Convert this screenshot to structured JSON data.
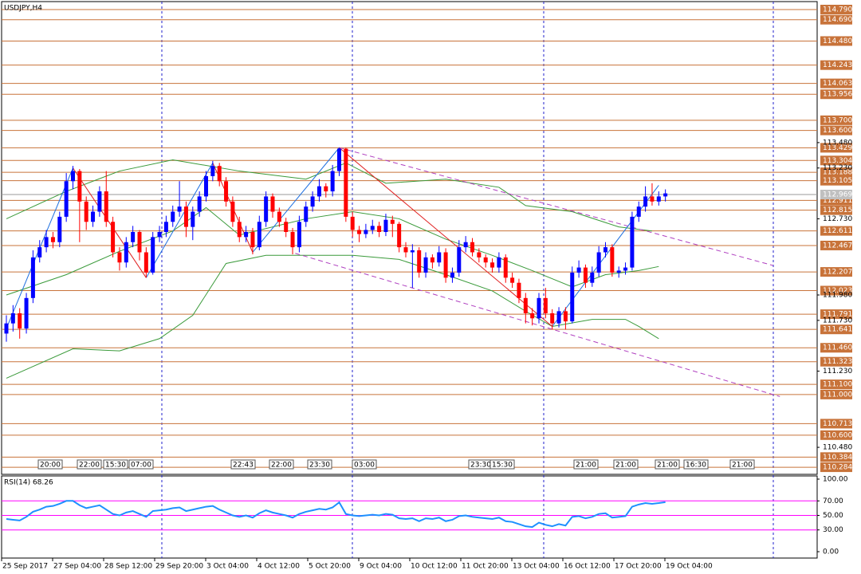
{
  "chart_data": {
    "type": "candlestick",
    "title": "USDJPY,H4",
    "ylim": [
      110.214,
      114.884
    ],
    "levels": [
      {
        "value": 114.79,
        "label": "114.790"
      },
      {
        "value": 114.69,
        "label": "114.690"
      },
      {
        "value": 114.48,
        "label": "114.480"
      },
      114.243,
      114.063,
      113.956,
      {
        "value": 113.7,
        "label": "113.700"
      },
      {
        "value": 113.6,
        "label": "113.600"
      },
      113.429,
      113.304,
      113.188,
      113.105,
      112.911,
      112.815,
      112.611,
      112.467,
      112.207,
      112.023,
      111.791,
      111.641,
      {
        "value": 111.46,
        "label": "111.460"
      },
      111.323,
      {
        "value": 111.1,
        "label": "111.100"
      },
      {
        "value": 111.0,
        "label": "111.000"
      },
      110.713,
      {
        "value": 110.6,
        "label": "110.600"
      },
      110.384,
      110.284
    ],
    "yticks": [
      {
        "value": 113.48,
        "label": "113.480"
      },
      {
        "value": 113.23,
        "label": "113.230"
      },
      {
        "value": 112.73,
        "label": "112.730"
      },
      {
        "value": 111.98,
        "label": "111.980"
      },
      {
        "value": 111.73,
        "label": "111.730"
      },
      {
        "value": 111.23,
        "label": "111.230"
      },
      {
        "value": 110.48,
        "label": "110.480"
      }
    ],
    "current_price": 112.969,
    "level_color": "#c8733a",
    "bull_color": "#0000ff",
    "bear_color": "#ff0000",
    "candles": [
      [
        111.6,
        111.78,
        111.52,
        111.7
      ],
      [
        111.7,
        111.88,
        111.62,
        111.8
      ],
      [
        111.8,
        111.85,
        111.55,
        111.65
      ],
      [
        111.65,
        112.0,
        111.6,
        111.95
      ],
      [
        111.95,
        112.42,
        111.9,
        112.35
      ],
      [
        112.35,
        112.52,
        112.3,
        112.45
      ],
      [
        112.45,
        112.62,
        112.4,
        112.55
      ],
      [
        112.55,
        112.6,
        112.44,
        112.5
      ],
      [
        112.5,
        112.8,
        112.45,
        112.75
      ],
      [
        112.75,
        113.18,
        112.7,
        113.1
      ],
      [
        113.1,
        113.25,
        113.02,
        113.2
      ],
      [
        113.2,
        113.22,
        112.5,
        112.9
      ],
      [
        112.9,
        112.95,
        112.62,
        112.7
      ],
      [
        112.7,
        112.86,
        112.65,
        112.8
      ],
      [
        112.8,
        113.05,
        112.75,
        113.0
      ],
      [
        113.0,
        113.2,
        112.65,
        112.7
      ],
      [
        112.7,
        112.75,
        112.35,
        112.4
      ],
      [
        112.4,
        112.45,
        112.22,
        112.3
      ],
      [
        112.3,
        112.55,
        112.25,
        112.5
      ],
      [
        112.5,
        112.66,
        112.45,
        112.6
      ],
      [
        112.6,
        112.62,
        112.32,
        112.4
      ],
      [
        112.4,
        112.45,
        112.15,
        112.2
      ],
      [
        112.2,
        112.6,
        112.18,
        112.55
      ],
      [
        112.55,
        112.66,
        112.5,
        112.6
      ],
      [
        112.6,
        112.76,
        112.55,
        112.7
      ],
      [
        112.7,
        112.86,
        112.65,
        112.8
      ],
      [
        112.8,
        113.1,
        112.75,
        112.85
      ],
      [
        112.85,
        112.9,
        112.55,
        112.65
      ],
      [
        112.65,
        112.85,
        112.52,
        112.8
      ],
      [
        112.8,
        113.0,
        112.75,
        112.95
      ],
      [
        112.95,
        113.2,
        112.9,
        113.15
      ],
      [
        113.15,
        113.3,
        113.1,
        113.25
      ],
      [
        113.25,
        113.28,
        113.05,
        113.1
      ],
      [
        113.1,
        113.14,
        112.85,
        112.9
      ],
      [
        112.9,
        112.95,
        112.65,
        112.7
      ],
      [
        112.7,
        112.75,
        112.5,
        112.55
      ],
      [
        112.55,
        112.66,
        112.5,
        112.6
      ],
      [
        112.6,
        112.64,
        112.38,
        112.45
      ],
      [
        112.45,
        112.76,
        112.42,
        112.7
      ],
      [
        112.7,
        113.0,
        112.65,
        112.95
      ],
      [
        112.95,
        112.98,
        112.74,
        112.8
      ],
      [
        112.8,
        112.84,
        112.65,
        112.7
      ],
      [
        112.7,
        112.74,
        112.55,
        112.6
      ],
      [
        112.6,
        112.64,
        112.38,
        112.45
      ],
      [
        112.45,
        112.76,
        112.4,
        112.7
      ],
      [
        112.7,
        112.9,
        112.65,
        112.85
      ],
      [
        112.85,
        113.0,
        112.8,
        112.95
      ],
      [
        112.95,
        113.12,
        112.9,
        113.05
      ],
      [
        113.05,
        113.08,
        112.94,
        113.0
      ],
      [
        113.0,
        113.26,
        112.95,
        113.2
      ],
      [
        113.2,
        113.43,
        113.15,
        113.42
      ],
      [
        113.42,
        113.43,
        112.7,
        112.75
      ],
      [
        112.75,
        112.8,
        112.55,
        112.62
      ],
      [
        112.62,
        112.66,
        112.5,
        112.58
      ],
      [
        112.58,
        112.68,
        112.54,
        112.62
      ],
      [
        112.62,
        112.72,
        112.58,
        112.66
      ],
      [
        112.66,
        112.7,
        112.55,
        112.6
      ],
      [
        112.6,
        112.78,
        112.56,
        112.72
      ],
      [
        112.72,
        112.76,
        112.55,
        112.68
      ],
      [
        112.68,
        112.7,
        112.4,
        112.45
      ],
      [
        112.45,
        112.5,
        112.35,
        112.4
      ],
      [
        112.4,
        112.48,
        112.05,
        112.42
      ],
      [
        112.42,
        112.45,
        112.15,
        112.2
      ],
      [
        112.2,
        112.4,
        112.15,
        112.35
      ],
      [
        112.35,
        112.38,
        112.24,
        112.3
      ],
      [
        112.3,
        112.46,
        112.26,
        112.4
      ],
      [
        112.4,
        112.44,
        112.1,
        112.15
      ],
      [
        112.15,
        112.25,
        112.1,
        112.2
      ],
      [
        112.2,
        112.52,
        112.16,
        112.45
      ],
      [
        112.45,
        112.56,
        112.4,
        112.5
      ],
      [
        112.5,
        112.54,
        112.36,
        112.4
      ],
      [
        112.4,
        112.44,
        112.3,
        112.35
      ],
      [
        112.35,
        112.38,
        112.25,
        112.3
      ],
      [
        112.3,
        112.34,
        112.2,
        112.25
      ],
      [
        112.25,
        112.4,
        112.2,
        112.35
      ],
      [
        112.35,
        112.38,
        112.1,
        112.15
      ],
      [
        112.15,
        112.2,
        112.05,
        112.1
      ],
      [
        112.1,
        112.14,
        111.9,
        111.95
      ],
      [
        111.95,
        112.0,
        111.7,
        111.8
      ],
      [
        111.8,
        111.85,
        111.68,
        111.75
      ],
      [
        111.75,
        112.0,
        111.7,
        111.95
      ],
      [
        111.95,
        112.05,
        111.75,
        111.8
      ],
      [
        111.8,
        111.84,
        111.64,
        111.7
      ],
      [
        111.7,
        111.86,
        111.66,
        111.82
      ],
      [
        111.82,
        111.86,
        111.64,
        111.72
      ],
      [
        111.72,
        112.26,
        111.7,
        112.2
      ],
      [
        112.2,
        112.32,
        112.15,
        112.25
      ],
      [
        112.25,
        112.28,
        112.05,
        112.1
      ],
      [
        112.1,
        112.26,
        112.06,
        112.2
      ],
      [
        112.2,
        112.46,
        112.16,
        112.4
      ],
      [
        112.4,
        112.5,
        112.35,
        112.45
      ],
      [
        112.45,
        112.48,
        112.16,
        112.2
      ],
      [
        112.2,
        112.26,
        112.15,
        112.22
      ],
      [
        112.22,
        112.3,
        112.18,
        112.25
      ],
      [
        112.25,
        112.8,
        112.22,
        112.75
      ],
      [
        112.75,
        112.9,
        112.7,
        112.85
      ],
      [
        112.85,
        113.05,
        112.8,
        112.95
      ],
      [
        112.95,
        113.08,
        112.86,
        112.9
      ],
      [
        112.9,
        113.0,
        112.86,
        112.95
      ],
      [
        112.95,
        113.02,
        112.9,
        112.98
      ]
    ],
    "overlays": [
      {
        "color": "#3a9a3a",
        "dashed": false,
        "x": [
          0,
          9,
          17,
          25,
          35,
          45,
          51,
          57,
          66,
          74,
          78,
          85,
          92,
          97
        ],
        "values": [
          112.73,
          113.0,
          113.2,
          113.31,
          113.2,
          113.12,
          113.28,
          113.08,
          113.12,
          113.04,
          112.86,
          112.8,
          112.65,
          112.61
        ]
      },
      {
        "color": "#3a9a3a",
        "dashed": false,
        "x": [
          0,
          9,
          17,
          25,
          30,
          35,
          45,
          52,
          59,
          66,
          73,
          79,
          85,
          90,
          95,
          98
        ],
        "values": [
          111.98,
          112.18,
          112.41,
          112.61,
          112.84,
          112.57,
          112.73,
          112.8,
          112.73,
          112.53,
          112.37,
          112.22,
          112.06,
          112.18,
          112.22,
          112.26
        ]
      },
      {
        "color": "#3a9a3a",
        "dashed": false,
        "x": [
          0,
          10,
          17,
          23,
          28,
          33,
          39,
          52,
          59,
          66,
          73,
          78,
          82,
          88,
          93,
          95,
          98
        ],
        "values": [
          111.16,
          111.45,
          111.43,
          111.55,
          111.78,
          112.29,
          112.37,
          112.37,
          112.33,
          112.18,
          112.02,
          111.82,
          111.67,
          111.74,
          111.74,
          111.67,
          111.55
        ]
      },
      {
        "color": "#b040c0",
        "dashed": true,
        "x": [
          50,
          115.2
        ],
        "values": [
          113.43,
          112.27
        ]
      },
      {
        "color": "#b040c0",
        "dashed": true,
        "x": [
          43.4,
          116.2
        ],
        "values": [
          112.39,
          110.98
        ]
      }
    ],
    "zigzag": {
      "x": [
        0,
        10,
        21,
        31,
        37,
        50,
        82,
        98
      ],
      "values": [
        111.65,
        113.23,
        112.15,
        113.28,
        112.4,
        113.43,
        111.67,
        113.06
      ],
      "up_color": "#1e6fe0",
      "down_color": "#e02020"
    },
    "event_labels": [
      "20:00",
      "22:00",
      "15:30",
      "07:00",
      "22:43",
      "22:00",
      "23:30",
      "03:00",
      "23:30",
      "15:30",
      "21:00",
      "21:00",
      "21:00",
      "16:30",
      "21:00"
    ],
    "rsi": {
      "title": "RSI(14) 68.26",
      "color": "#1e90ff",
      "level_color": "#ff00ff",
      "ylim": [
        0,
        100
      ],
      "yticks": [
        {
          "value": 100,
          "label": "100.00"
        },
        {
          "value": 70,
          "label": "70.00"
        },
        {
          "value": 50,
          "label": "50.00"
        },
        {
          "value": 30,
          "label": "30.00"
        },
        {
          "value": 0,
          "label": "0.00"
        }
      ],
      "levels": [
        70,
        50,
        30
      ],
      "values": [
        45,
        44,
        43,
        48,
        55,
        58,
        62,
        63,
        66,
        70,
        70,
        64,
        60,
        62,
        64,
        58,
        52,
        50,
        54,
        56,
        52,
        48,
        56,
        57,
        58,
        60,
        61,
        56,
        58,
        60,
        62,
        63,
        58,
        54,
        50,
        48,
        50,
        47,
        53,
        57,
        54,
        52,
        50,
        47,
        52,
        55,
        57,
        59,
        58,
        61,
        68,
        52,
        50,
        49,
        50,
        51,
        50,
        52,
        51,
        46,
        45,
        46,
        42,
        46,
        45,
        47,
        42,
        44,
        49,
        50,
        48,
        47,
        46,
        45,
        47,
        42,
        41,
        38,
        35,
        34,
        40,
        37,
        35,
        38,
        36,
        48,
        49,
        46,
        48,
        52,
        53,
        47,
        48,
        49,
        62,
        65,
        67,
        66,
        67,
        68.26
      ]
    },
    "time_labels": [
      "25 Sep 2017",
      "27 Sep 04:00",
      "28 Sep 12:00",
      "29 Sep 20:00",
      "3 Oct 04:00",
      "4 Oct 12:00",
      "5 Oct 20:00",
      "9 Oct 04:00",
      "10 Oct 12:00",
      "11 Oct 20:00",
      "13 Oct 04:00",
      "16 Oct 12:00",
      "17 Oct 20:00",
      "19 Oct 04:00"
    ]
  }
}
